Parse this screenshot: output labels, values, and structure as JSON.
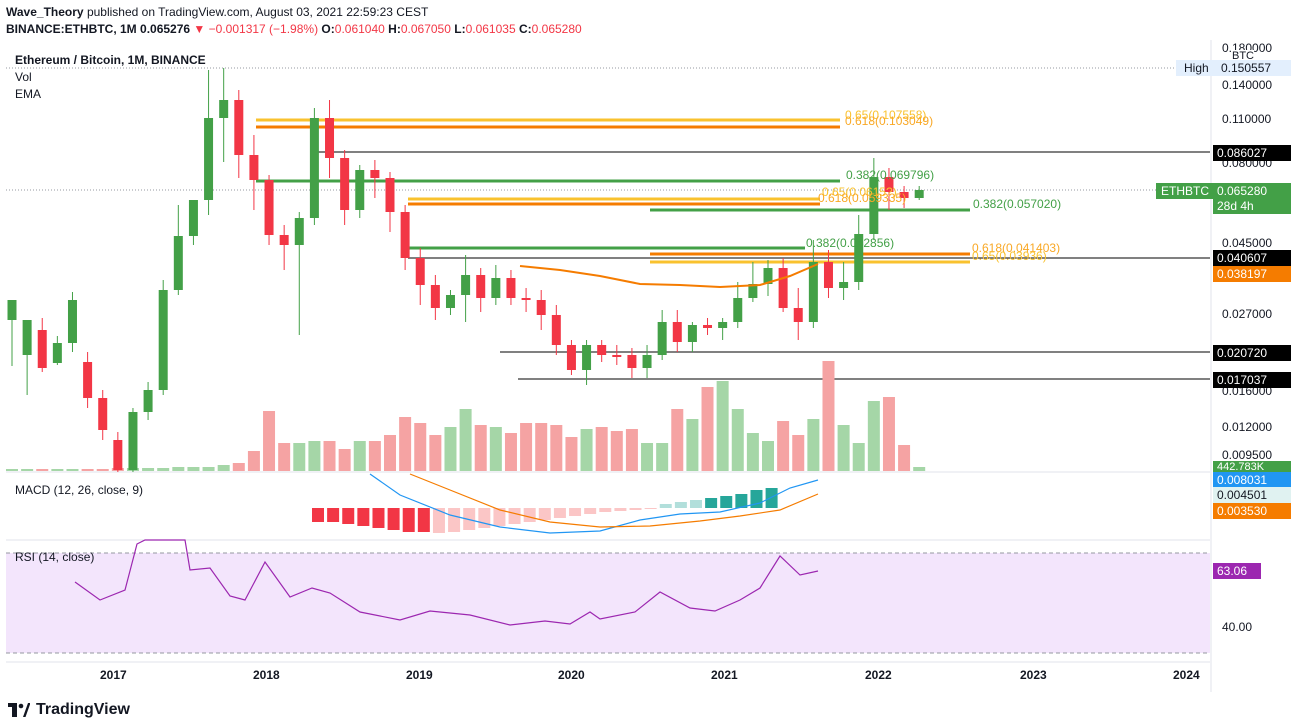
{
  "header": {
    "author": "Wave_Theory",
    "published_text": "published on TradingView.com, August 03, 2021 22:59:23 CEST",
    "symbol": "ETHBTC",
    "interval": "1M",
    "last": "0.065276",
    "change": "−0.001317 (−1.98%)",
    "o_label": "O:",
    "o": "0.061040",
    "h_label": "H:",
    "h": "0.067050",
    "l_label": "L:",
    "l": "0.061035",
    "c_label": "C:",
    "c": "0.065280",
    "exchange_prefix": "BINANCE:ETHBTC, 1M"
  },
  "legend": {
    "title": "Ethereum / Bitcoin, 1M, BINANCE",
    "vol": "Vol",
    "ema": "EMA"
  },
  "price_axis": {
    "currency": "BTC",
    "ticks": [
      "0.180000",
      "0.140000",
      "0.110000",
      "0.080000",
      "0.045000",
      "0.027000",
      "0.016000",
      "0.012000",
      "0.009500"
    ],
    "high_label": "High",
    "high_value": "0.150557",
    "markers": [
      {
        "value": "0.086027",
        "color": "#000000"
      },
      {
        "value": "0.040607",
        "color": "#000000"
      },
      {
        "value": "0.038197",
        "color": "#f57c00"
      },
      {
        "value": "0.020720",
        "color": "#000000"
      },
      {
        "value": "0.017037",
        "color": "#000000"
      }
    ],
    "current_symbol": "ETHBTC",
    "current_value": "0.065280",
    "current_countdown": "28d 4h",
    "volume_value": "442.783K"
  },
  "fib_labels": [
    {
      "text": "0.65(0.107558)",
      "color": "#f9c22e"
    },
    {
      "text": "0.618(0.103049)",
      "color": "#f9a825"
    },
    {
      "text": "0.382(0.069796)",
      "color": "#43a047"
    },
    {
      "text": "0.65(0.0615?)",
      "color": "#f9c22e"
    },
    {
      "text": "0.618(0.059335)",
      "color": "#f9a825"
    },
    {
      "text": "0.382(0.057020)",
      "color": "#43a047"
    },
    {
      "text": "0.382(0.042856)",
      "color": "#43a047"
    },
    {
      "text": "0.618(0.041403)",
      "color": "#f9a825"
    },
    {
      "text": "0.65(0.03936)",
      "color": "#f9c22e"
    }
  ],
  "macd": {
    "title": "MACD (12, 26, close, 9)",
    "values": [
      {
        "value": "0.008031",
        "color": "#2196f3"
      },
      {
        "value": "0.004501",
        "color": "#26a69a"
      },
      {
        "value": "0.003530",
        "color": "#f57c00"
      }
    ]
  },
  "rsi": {
    "title": "RSI (14, close)",
    "value": "63.06",
    "value_color": "#9c27b0",
    "ticks": [
      "40.00"
    ]
  },
  "time_axis": [
    "2017",
    "2018",
    "2019",
    "2020",
    "2021",
    "2022",
    "2023",
    "2024"
  ],
  "footer": {
    "brand": "TradingView"
  },
  "colors": {
    "up": "#26a69a",
    "up_candle": "#43a047",
    "down": "#f23645",
    "ema": "#f57c00",
    "macd": "#2196f3",
    "rsi": "#9c27b0"
  }
}
